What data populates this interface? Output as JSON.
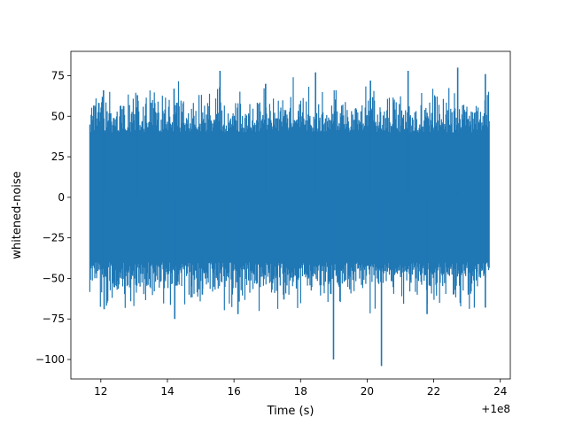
{
  "chart_data": {
    "type": "line",
    "title": "",
    "xlabel": "Time (s)",
    "ylabel": "whitened-noise",
    "x_offset_label": "+1e8",
    "xlim": [
      11.1,
      24.3
    ],
    "ylim": [
      -112,
      90
    ],
    "x_ticks": [
      12,
      14,
      16,
      18,
      20,
      22,
      24
    ],
    "x_tick_labels": [
      "12",
      "14",
      "16",
      "18",
      "20",
      "22",
      "24"
    ],
    "y_ticks": [
      75,
      50,
      25,
      0,
      -25,
      -50,
      -75,
      -100
    ],
    "y_tick_labels": [
      "75",
      "50",
      "25",
      "0",
      "−25",
      "−50",
      "−75",
      "−100"
    ],
    "grid": false,
    "series": [
      {
        "color": "#1f77b4",
        "x_range": [
          11.67,
          23.67
        ],
        "band_upper": 40,
        "band_lower": -40,
        "peaks": [
          {
            "x": 12.08,
            "y": 66
          },
          {
            "x": 13.1,
            "y": 63
          },
          {
            "x": 14.2,
            "y": 67
          },
          {
            "x": 15.58,
            "y": 78
          },
          {
            "x": 16.95,
            "y": 70
          },
          {
            "x": 18.45,
            "y": 77
          },
          {
            "x": 20.1,
            "y": 72
          },
          {
            "x": 21.23,
            "y": 78
          },
          {
            "x": 22.72,
            "y": 80
          },
          {
            "x": 23.55,
            "y": 76
          }
        ],
        "troughs": [
          {
            "x": 12.1,
            "y": -69
          },
          {
            "x": 14.22,
            "y": -75
          },
          {
            "x": 15.05,
            "y": -60
          },
          {
            "x": 16.12,
            "y": -72
          },
          {
            "x": 17.5,
            "y": -63
          },
          {
            "x": 18.99,
            "y": -100
          },
          {
            "x": 20.43,
            "y": -104
          },
          {
            "x": 21.8,
            "y": -72
          },
          {
            "x": 23.55,
            "y": -68
          }
        ]
      }
    ]
  }
}
